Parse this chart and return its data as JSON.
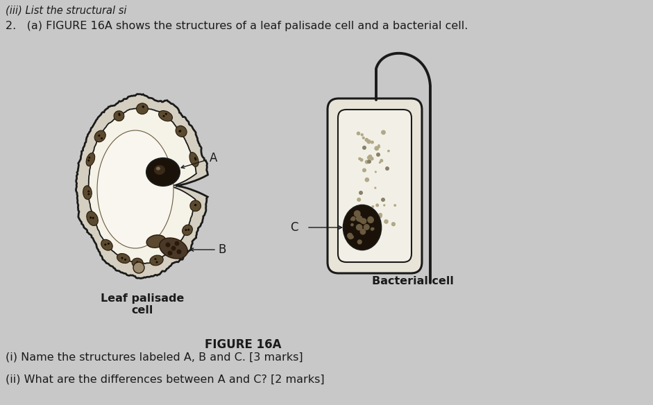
{
  "background_color": "#c8c8c8",
  "top_text": "(iii) List the structural si",
  "main_text": "2.   (a) FIGURE 16A shows the structures of a leaf palisade cell and a bacterial cell.",
  "label_A": "A",
  "label_B": "B",
  "label_C": "C",
  "leaf_label": "Leaf palisade\ncell",
  "bacterial_label": "Bacterial cell",
  "figure_label": "FIGURE 16A",
  "question_i": "(i) Name the structures labeled A, B and C. [3 marks]",
  "question_ii": "(ii) What are the differences between A and C? [2 marks]",
  "text_color": "#1a1a1a",
  "bg_light": "#d0cecb",
  "cell_line": "#1a1a1a",
  "cell_interior": "#f0ede5",
  "nucleus_fill": "#1a1209",
  "chloroplast_fill": "#4a3a28",
  "nucleoid_fill": "#2a1a08"
}
